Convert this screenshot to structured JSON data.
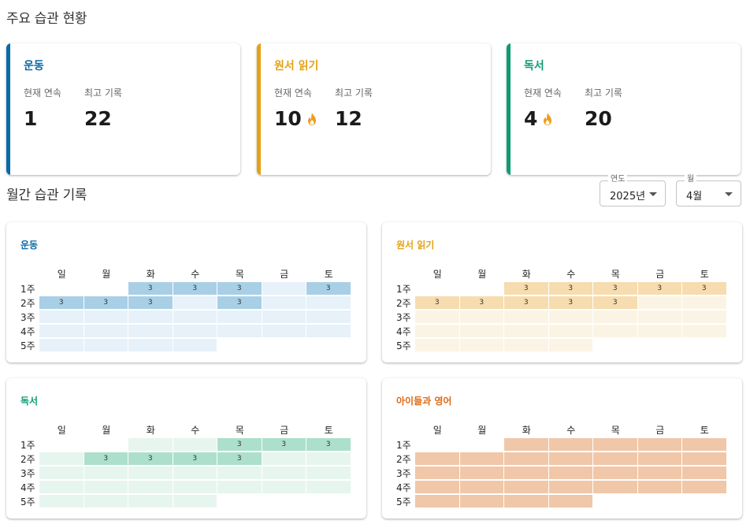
{
  "summary_title": "주요 습관 현황",
  "monthly_title": "월간 습관 기록",
  "labels": {
    "current": "현재 연속",
    "best": "최고 기록"
  },
  "habits": [
    {
      "name": "운동",
      "accent": "#0a6aa8",
      "current": "1",
      "current_fire": false,
      "best": "22",
      "title_color": "#0a6aa8",
      "filled": "#a8cfe6",
      "empty": "#e7f1fa"
    },
    {
      "name": "원서 읽기",
      "accent": "#e5a213",
      "current": "10",
      "current_fire": true,
      "best": "12",
      "title_color": "#e5a213",
      "filled": "#f6dcae",
      "empty": "#fbf4e5"
    },
    {
      "name": "독서",
      "accent": "#0f9b75",
      "current": "4",
      "current_fire": true,
      "best": "20",
      "title_color": "#0f9b75",
      "filled": "#acdfcc",
      "empty": "#e7f5ef"
    },
    {
      "name": "아이들과 영어",
      "title_color": "#dd6a16",
      "filled": "#f0c7a8",
      "empty": "#f0c7a8"
    }
  ],
  "filters": {
    "year_legend": "연도",
    "year_value": "2025년",
    "month_legend": "월",
    "month_value": "4월"
  },
  "weekdays": [
    "일",
    "월",
    "화",
    "수",
    "목",
    "금",
    "토"
  ],
  "weeks": [
    "1주",
    "2주",
    "3주",
    "4주",
    "5주"
  ],
  "calendars": [
    {
      "habit": "운동",
      "rows": [
        [
          "x",
          "x",
          "3",
          "3",
          "3",
          "e",
          "3"
        ],
        [
          "3",
          "3",
          "3",
          "e",
          "3",
          "e",
          "e"
        ],
        [
          "e",
          "e",
          "e",
          "e",
          "e",
          "e",
          "e"
        ],
        [
          "e",
          "e",
          "e",
          "e",
          "e",
          "e",
          "e"
        ],
        [
          "e",
          "e",
          "e",
          "e",
          "x",
          "x",
          "x"
        ]
      ]
    },
    {
      "habit": "원서 읽기",
      "rows": [
        [
          "x",
          "x",
          "3",
          "3",
          "3",
          "3",
          "3"
        ],
        [
          "3",
          "3",
          "3",
          "3",
          "3",
          "e",
          "e"
        ],
        [
          "e",
          "e",
          "e",
          "e",
          "e",
          "e",
          "e"
        ],
        [
          "e",
          "e",
          "e",
          "e",
          "e",
          "e",
          "e"
        ],
        [
          "e",
          "e",
          "e",
          "e",
          "x",
          "x",
          "x"
        ]
      ]
    },
    {
      "habit": "독서",
      "rows": [
        [
          "x",
          "x",
          "e",
          "e",
          "3",
          "3",
          "3"
        ],
        [
          "e",
          "3",
          "3",
          "3",
          "3",
          "e",
          "e"
        ],
        [
          "e",
          "e",
          "e",
          "e",
          "e",
          "e",
          "e"
        ],
        [
          "e",
          "e",
          "e",
          "e",
          "e",
          "e",
          "e"
        ],
        [
          "e",
          "e",
          "e",
          "e",
          "x",
          "x",
          "x"
        ]
      ]
    },
    {
      "habit": "아이들과 영어",
      "rows": [
        [
          "x",
          "x",
          "f",
          "f",
          "f",
          "f",
          "f"
        ],
        [
          "f",
          "f",
          "f",
          "f",
          "f",
          "f",
          "f"
        ],
        [
          "f",
          "f",
          "f",
          "f",
          "f",
          "f",
          "f"
        ],
        [
          "f",
          "f",
          "f",
          "f",
          "f",
          "f",
          "f"
        ],
        [
          "f",
          "f",
          "f",
          "f",
          "x",
          "x",
          "x"
        ]
      ]
    }
  ]
}
